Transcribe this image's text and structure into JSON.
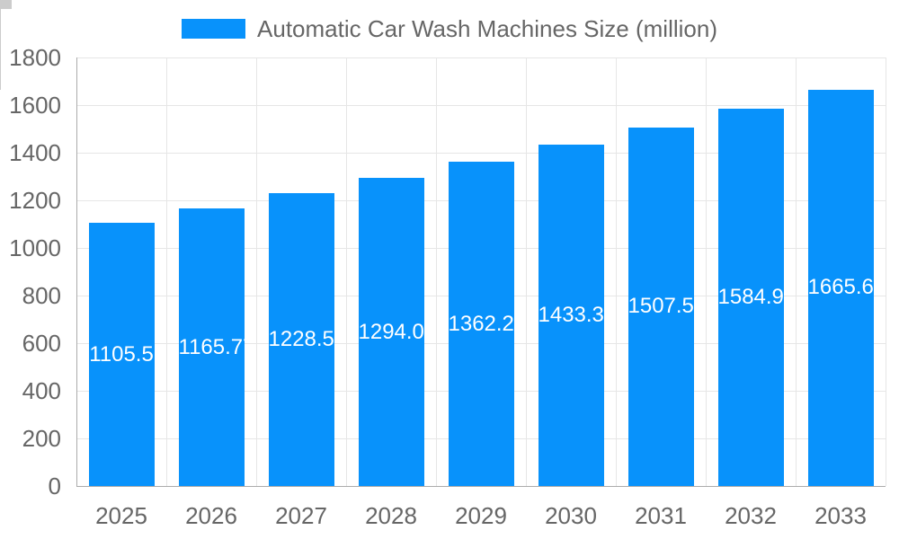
{
  "chart_data": {
    "type": "bar",
    "title": "Automatic Car Wash Machines Size (million)",
    "legend": [
      {
        "label": "Automatic Car Wash Machines Size (million)"
      }
    ],
    "legend_position": "top",
    "categories": [
      "2025",
      "2026",
      "2027",
      "2028",
      "2029",
      "2030",
      "2031",
      "2032",
      "2033"
    ],
    "values": [
      1105.5,
      1165.77,
      1228.58,
      1294.06,
      1362.26,
      1433.37,
      1507.54,
      1584.92,
      1665.61
    ],
    "bar_labels": [
      "1105.5",
      "1165.77",
      "1228.58",
      "1294.06",
      "1362.26",
      "1433.37",
      "1507.54",
      "1584.92",
      "1665.61"
    ],
    "xlabel": "",
    "ylabel": "",
    "ylim": [
      0,
      1800
    ],
    "ytick_step": 200,
    "yticks": [
      0,
      200,
      400,
      600,
      800,
      1000,
      1200,
      1400,
      1600,
      1800
    ],
    "grid": true,
    "colors": {
      "bar": "#0892fb",
      "bar_label_text": "#ffffff",
      "axis_text": "#666666",
      "gridline": "#e6e6e6",
      "axis_line": "#ababab",
      "tick": "#cccccc",
      "background": "#ffffff"
    }
  }
}
